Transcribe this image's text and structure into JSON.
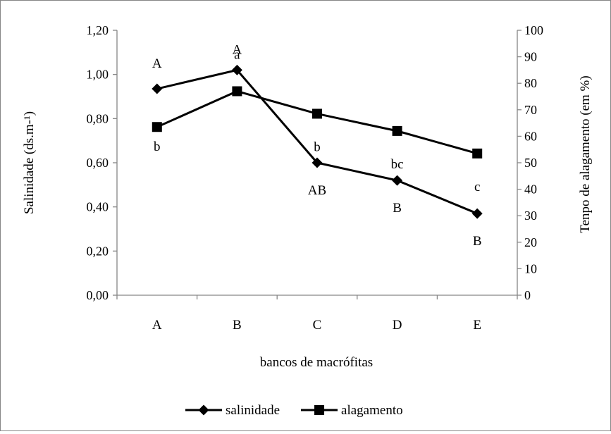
{
  "chart_data": {
    "type": "line",
    "title": "",
    "xlabel": "bancos de macrófitas",
    "ylabel": "Salinidade (ds.m-¹)",
    "y2label": "Tenpo de alagamento (em %)",
    "categories": [
      "A",
      "B",
      "C",
      "D",
      "E"
    ],
    "ylim": [
      0,
      1.2
    ],
    "y2lim": [
      0,
      100
    ],
    "y_ticks": [
      "0,00",
      "0,20",
      "0,40",
      "0,60",
      "0,80",
      "1,00",
      "1,20"
    ],
    "y2_ticks": [
      "0",
      "10",
      "20",
      "30",
      "40",
      "50",
      "60",
      "70",
      "80",
      "90",
      "100"
    ],
    "grid": false,
    "legend_position": "bottom",
    "series": [
      {
        "name": "salinidade",
        "axis": "left",
        "marker": "diamond",
        "color": "#000000",
        "values": [
          0.935,
          1.02,
          0.6,
          0.52,
          0.37
        ],
        "annotations": [
          "A",
          "A",
          "AB",
          "B",
          "B"
        ]
      },
      {
        "name": "alagamento",
        "axis": "right",
        "marker": "square",
        "color": "#000000",
        "values": [
          63.5,
          77,
          68.5,
          62,
          53.5
        ],
        "annotations": [
          "b",
          "a",
          "b",
          "bc",
          "c"
        ]
      }
    ]
  }
}
